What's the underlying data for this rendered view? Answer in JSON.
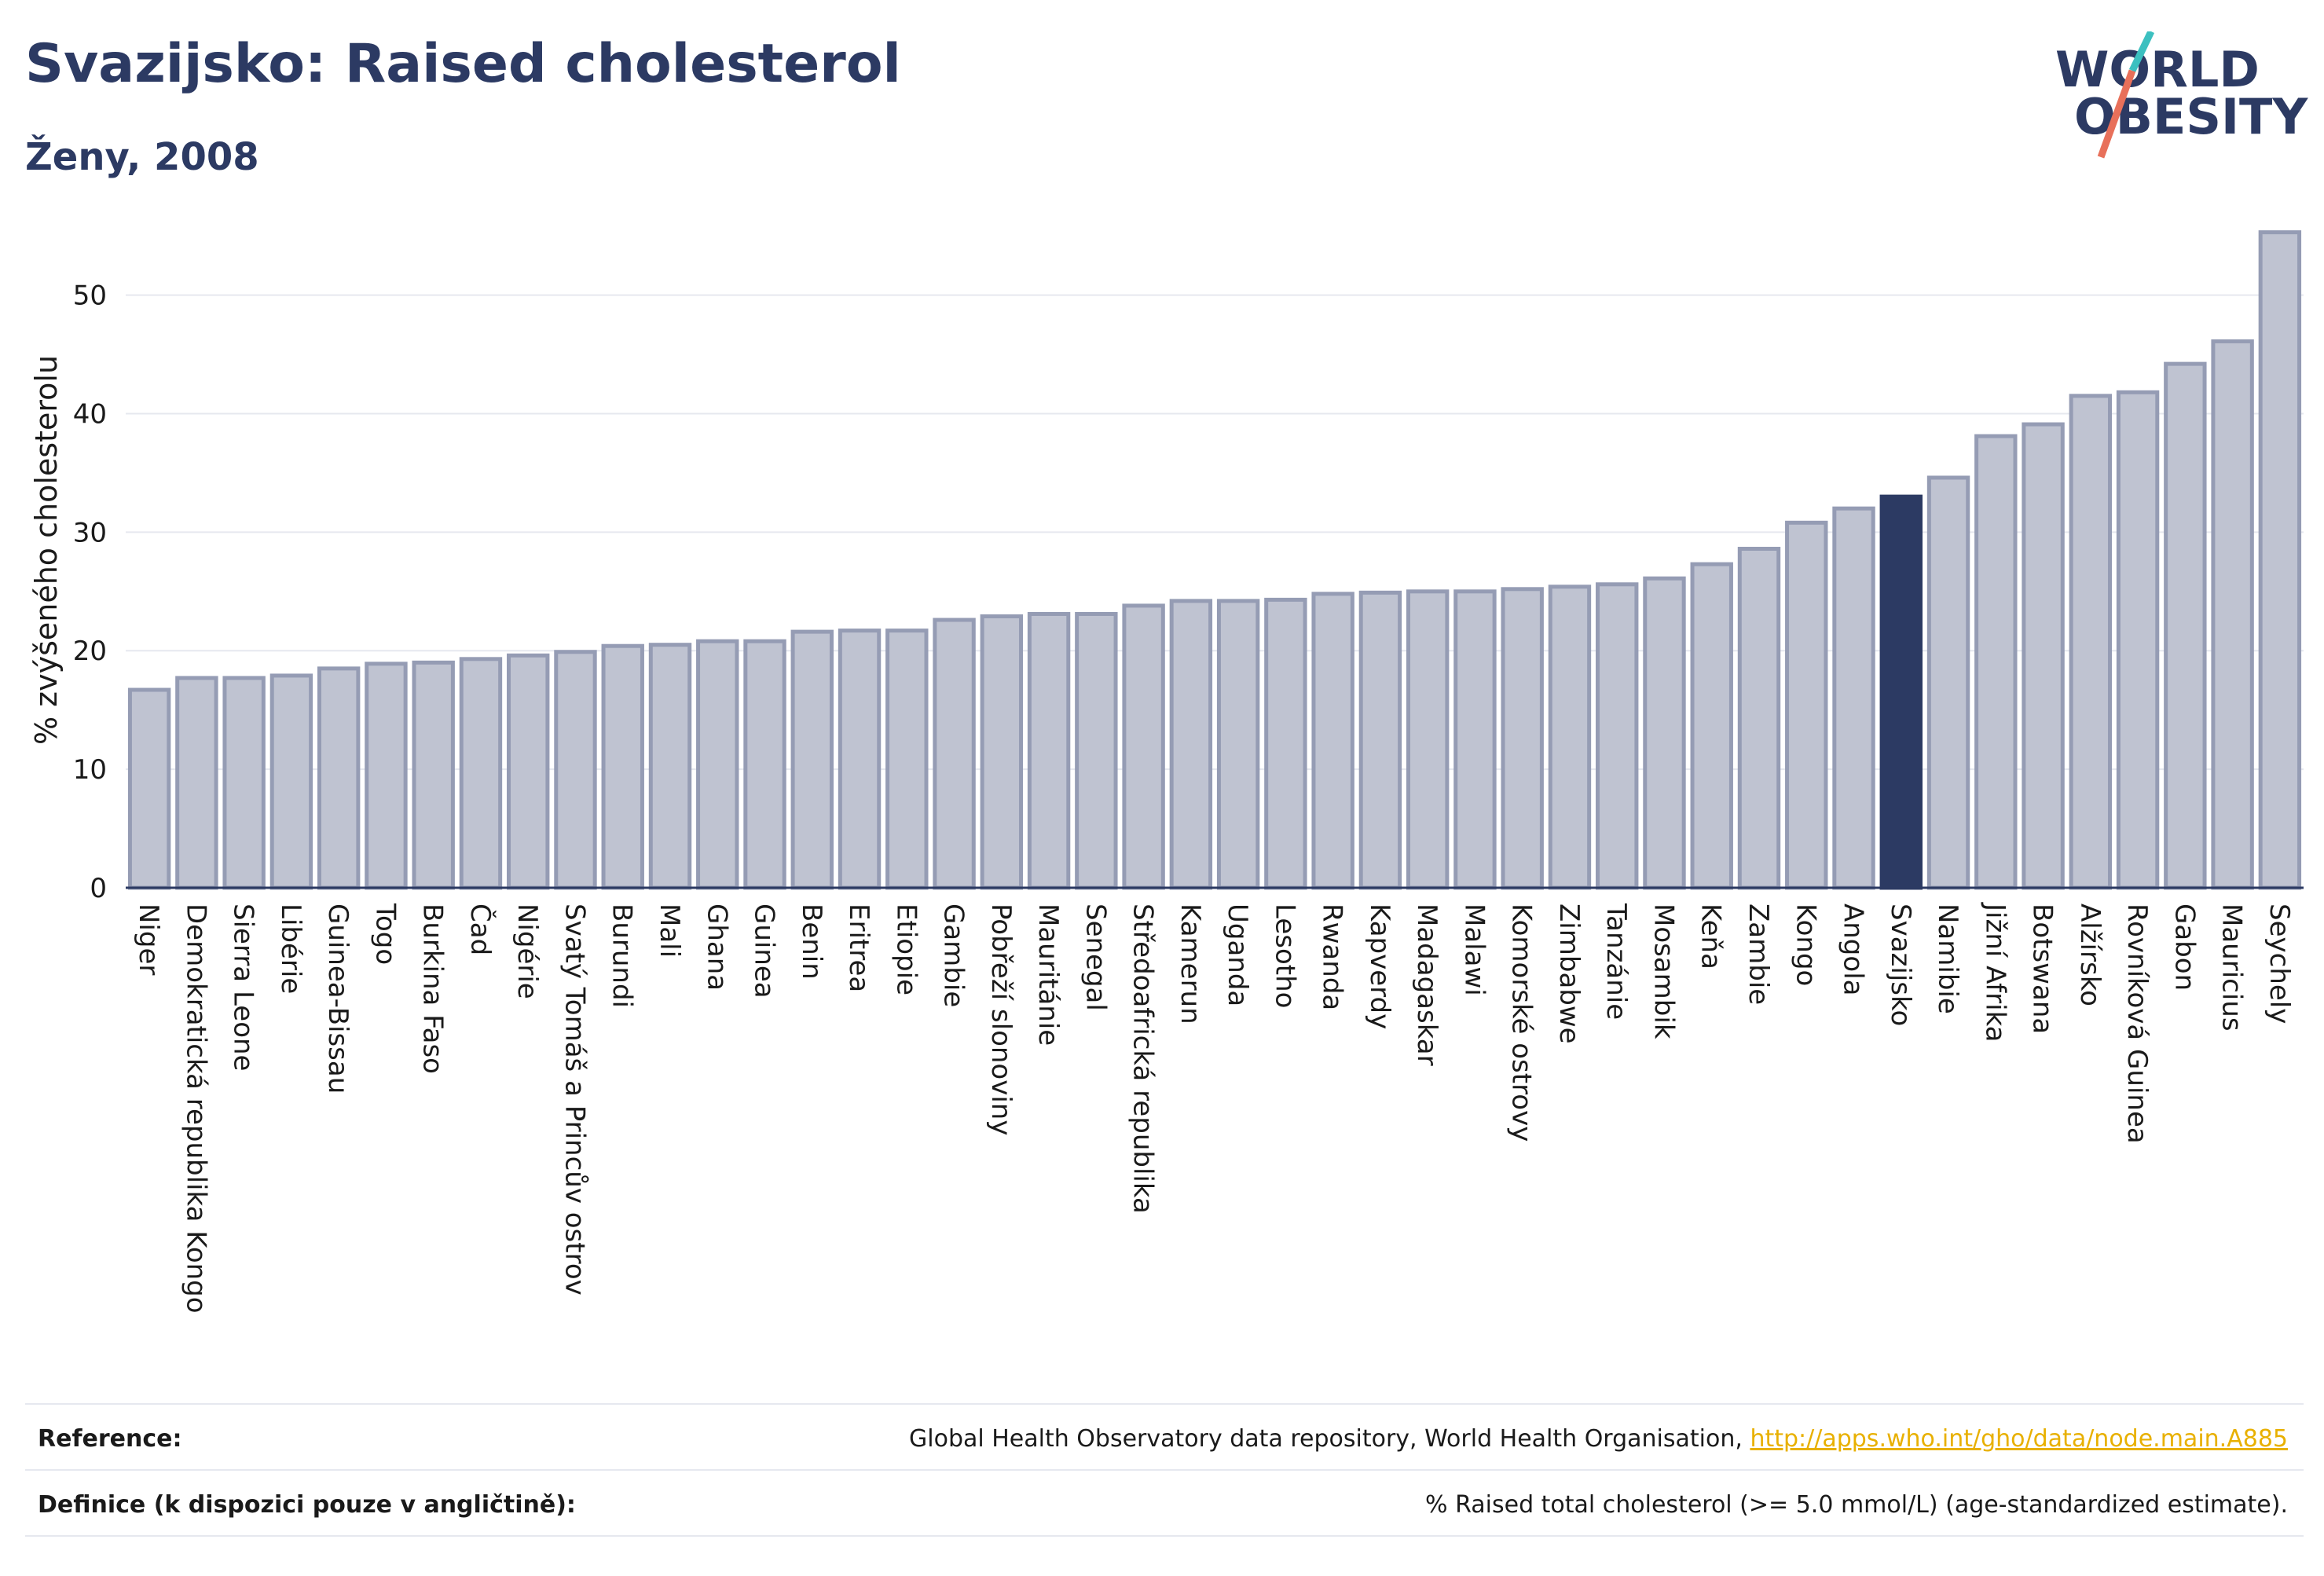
{
  "header": {
    "title": "Svazijsko: Raised cholesterol",
    "subtitle": "Ženy, 2008"
  },
  "logo": {
    "line1": "WORLD",
    "line2": "OBESITY",
    "accent_colors": [
      "#3cc0c0",
      "#e8705a"
    ]
  },
  "chart_data": {
    "type": "bar",
    "ylabel": "% zvýšeného cholesterolu",
    "xlabel": "",
    "ylim": [
      0,
      57
    ],
    "yticks": [
      0,
      10,
      20,
      30,
      40,
      50
    ],
    "grid": true,
    "highlight": "Svazijsko",
    "colors": {
      "bar": "#bfc3d1",
      "bar_edge": "#959cb4",
      "highlight": "#2c3a63"
    },
    "categories": [
      "Niger",
      "Demokratická republika Kongo",
      "Sierra Leone",
      "Libérie",
      "Guinea-Bissau",
      "Togo",
      "Burkina Faso",
      "Čad",
      "Nigérie",
      "Svatý Tomáš a Princův ostrov",
      "Burundi",
      "Mali",
      "Ghana",
      "Guinea",
      "Benin",
      "Eritrea",
      "Etiopie",
      "Gambie",
      "Pobřeží slonoviny",
      "Mauritánie",
      "Senegal",
      "Středoafrická republika",
      "Kamerun",
      "Uganda",
      "Lesotho",
      "Rwanda",
      "Kapverdy",
      "Madagaskar",
      "Malawi",
      "Komorské ostrovy",
      "Zimbabwe",
      "Tanzánie",
      "Mosambik",
      "Keňa",
      "Zambie",
      "Kongo",
      "Angola",
      "Svazijsko",
      "Namibie",
      "Jižní Afrika",
      "Botswana",
      "Alžírsko",
      "Rovníková Guinea",
      "Gabon",
      "Mauricius",
      "Seychely"
    ],
    "values": [
      16.7,
      17.7,
      17.7,
      17.9,
      18.5,
      18.9,
      19.0,
      19.3,
      19.6,
      19.9,
      20.4,
      20.5,
      20.8,
      20.8,
      21.6,
      21.7,
      21.7,
      22.6,
      22.9,
      23.1,
      23.1,
      23.8,
      24.2,
      24.2,
      24.3,
      24.8,
      24.9,
      25.0,
      25.0,
      25.2,
      25.4,
      25.6,
      26.1,
      27.3,
      28.6,
      30.8,
      32.0,
      33.0,
      34.6,
      38.1,
      39.1,
      41.5,
      41.8,
      44.2,
      46.1,
      55.3
    ]
  },
  "footer": {
    "reference_label": "Reference:",
    "reference_text": "Global Health Observatory data repository, World Health Organisation, ",
    "reference_link": "http://apps.who.int/gho/data/node.main.A885",
    "definition_label": "Definice (k dispozici pouze v angličtině):",
    "definition_text": "% Raised total cholesterol (>= 5.0 mmol/L) (age-standardized estimate)."
  }
}
